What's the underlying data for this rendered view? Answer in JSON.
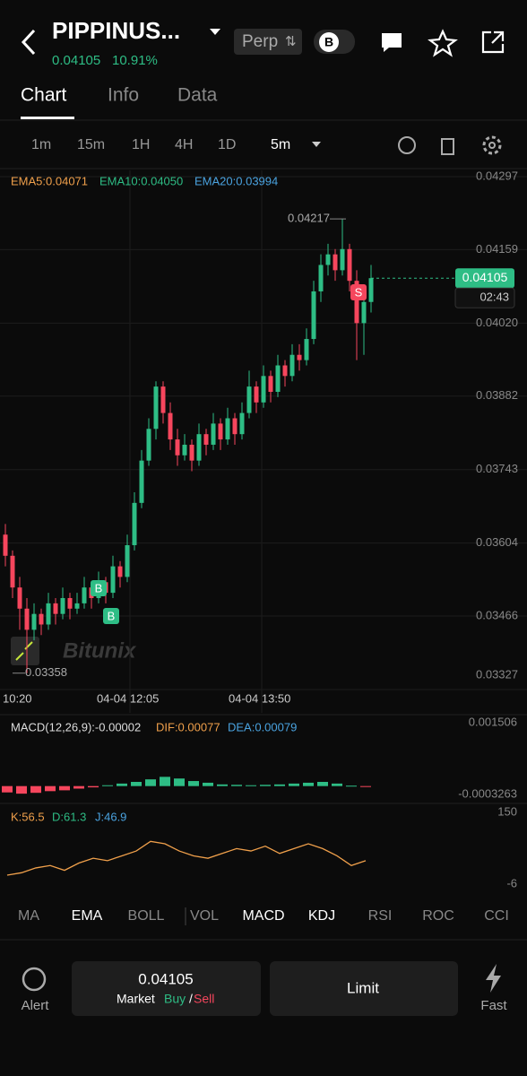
{
  "header": {
    "symbol": "PIPPINUS...",
    "market": "Perp",
    "badge": "B",
    "price": "0.04105",
    "change": "10.91%"
  },
  "tabs": [
    "Chart",
    "Info",
    "Data"
  ],
  "intervals": [
    "1m",
    "15m",
    "1H",
    "4H",
    "1D",
    "5m"
  ],
  "chart_data": {
    "type": "candlestick",
    "ema_legend": [
      "EMA5:0.04071",
      "EMA10:0.04050",
      "EMA20:0.03994"
    ],
    "candles": [
      [
        0.0362,
        0.0364,
        0.0356,
        0.0358
      ],
      [
        0.0358,
        0.0359,
        0.035,
        0.0352
      ],
      [
        0.0352,
        0.0354,
        0.0344,
        0.0348
      ],
      [
        0.0348,
        0.035,
        0.03358,
        0.0344
      ],
      [
        0.0344,
        0.0349,
        0.0342,
        0.0347
      ],
      [
        0.0347,
        0.0348,
        0.0343,
        0.0345
      ],
      [
        0.0345,
        0.0351,
        0.0344,
        0.0349
      ],
      [
        0.0349,
        0.035,
        0.0345,
        0.0347
      ],
      [
        0.0347,
        0.0352,
        0.0346,
        0.035
      ],
      [
        0.035,
        0.0351,
        0.0346,
        0.0348
      ],
      [
        0.0348,
        0.0351,
        0.0347,
        0.0349
      ],
      [
        0.0349,
        0.0354,
        0.0348,
        0.0352
      ],
      [
        0.0352,
        0.0353,
        0.0348,
        0.035
      ],
      [
        0.035,
        0.0355,
        0.0349,
        0.0353
      ],
      [
        0.0353,
        0.0354,
        0.0349,
        0.0351
      ],
      [
        0.0351,
        0.0358,
        0.035,
        0.0356
      ],
      [
        0.0356,
        0.0357,
        0.0352,
        0.0354
      ],
      [
        0.0354,
        0.0362,
        0.0353,
        0.036
      ],
      [
        0.036,
        0.037,
        0.0359,
        0.0368
      ],
      [
        0.0368,
        0.0378,
        0.0367,
        0.0376
      ],
      [
        0.0376,
        0.0384,
        0.0375,
        0.0382
      ],
      [
        0.0382,
        0.0391,
        0.038,
        0.039
      ],
      [
        0.039,
        0.0391,
        0.0383,
        0.0385
      ],
      [
        0.0385,
        0.0387,
        0.0378,
        0.038
      ],
      [
        0.038,
        0.0382,
        0.0375,
        0.0377
      ],
      [
        0.0377,
        0.0381,
        0.0376,
        0.0379
      ],
      [
        0.0379,
        0.038,
        0.0374,
        0.0376
      ],
      [
        0.0376,
        0.0383,
        0.0375,
        0.0381
      ],
      [
        0.0381,
        0.0382,
        0.0377,
        0.0379
      ],
      [
        0.0379,
        0.0385,
        0.0378,
        0.0383
      ],
      [
        0.0383,
        0.0384,
        0.0378,
        0.038
      ],
      [
        0.038,
        0.0386,
        0.0379,
        0.0384
      ],
      [
        0.0384,
        0.0385,
        0.0379,
        0.0381
      ],
      [
        0.0381,
        0.0387,
        0.038,
        0.0385
      ],
      [
        0.0385,
        0.0393,
        0.0384,
        0.039
      ],
      [
        0.039,
        0.0391,
        0.0385,
        0.0387
      ],
      [
        0.0387,
        0.0394,
        0.0386,
        0.0392
      ],
      [
        0.0392,
        0.0393,
        0.0387,
        0.0389
      ],
      [
        0.0389,
        0.0396,
        0.0388,
        0.0394
      ],
      [
        0.0394,
        0.0395,
        0.039,
        0.0392
      ],
      [
        0.0392,
        0.0398,
        0.0391,
        0.0396
      ],
      [
        0.0396,
        0.0398,
        0.0393,
        0.0395
      ],
      [
        0.0395,
        0.0401,
        0.0394,
        0.0399
      ],
      [
        0.0399,
        0.041,
        0.0398,
        0.0408
      ],
      [
        0.0408,
        0.0415,
        0.0406,
        0.0413
      ],
      [
        0.0413,
        0.0417,
        0.0411,
        0.0415
      ],
      [
        0.0415,
        0.0416,
        0.041,
        0.0412
      ],
      [
        0.0412,
        0.04217,
        0.0411,
        0.0416
      ],
      [
        0.0416,
        0.0417,
        0.0408,
        0.041
      ],
      [
        0.041,
        0.0412,
        0.0395,
        0.0402
      ],
      [
        0.0402,
        0.0408,
        0.0396,
        0.0406
      ],
      [
        0.0406,
        0.0413,
        0.0404,
        0.04105
      ]
    ],
    "ylim": [
      0.03327,
      0.04297
    ],
    "yticks": [
      0.04297,
      0.04159,
      {
        "value": 0.0402,
        "label": "0.04020"
      },
      0.03882,
      0.03743,
      0.03604,
      0.03466,
      0.03327
    ],
    "high": 0.04217,
    "low": 0.03358,
    "last": 0.04105,
    "countdown": "02:43",
    "xlabels": [
      "10:20",
      "04-04 12:05",
      "04-04 13:50"
    ],
    "markers": [
      "B",
      "B",
      "S"
    ]
  },
  "macd": {
    "legend": "MACD(12,26,9):-0.00002",
    "dif": "DIF:0.00077",
    "dea": "DEA:0.00079",
    "ylim": [
      -0.0003263,
      0.001506
    ],
    "yticks": [
      0.001506,
      -0.0003263
    ],
    "values": [
      -0.00015,
      -0.00018,
      -0.00016,
      -0.00012,
      -0.0001,
      -6e-05,
      -3e-05,
      2e-05,
      6e-05,
      0.0001,
      0.00016,
      0.00022,
      0.00018,
      0.00012,
      8e-05,
      4e-05,
      3e-05,
      2e-05,
      3e-05,
      4e-05,
      6e-05,
      8e-05,
      0.0001,
      6e-05,
      1e-05,
      -2e-05
    ]
  },
  "kdj": {
    "legend": [
      "K:56.5",
      "D:61.3",
      "J:46.9"
    ],
    "ylim": [
      -6,
      150
    ],
    "yticks": [
      150,
      -6
    ],
    "k": [
      20,
      25,
      35,
      40,
      30,
      45,
      55,
      50,
      60,
      70,
      90,
      85,
      70,
      60,
      55,
      65,
      75,
      70,
      80,
      65,
      75,
      85,
      75,
      60,
      40,
      50
    ]
  },
  "indicators": [
    "MA",
    "EMA",
    "BOLL",
    "VOL",
    "MACD",
    "KDJ",
    "RSI",
    "ROC",
    "CCI"
  ],
  "footer": {
    "alert": "Alert",
    "price": "0.04105",
    "market": "Market",
    "buy": "Buy",
    "sep": "/",
    "sell": "Sell",
    "limit": "Limit",
    "fast": "Fast"
  }
}
